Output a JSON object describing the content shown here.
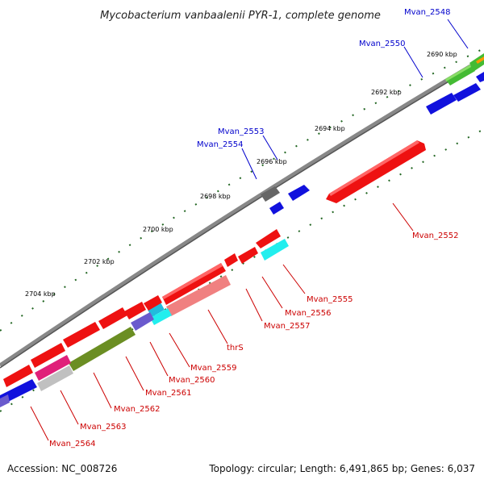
{
  "title": "Mycobacterium vanbaalenii PYR-1, complete genome",
  "footer": {
    "accession": "Accession: NC_008726",
    "stats": "Topology: circular; Length: 6,491,865 bp; Genes: 6,037"
  },
  "scale_labels": [
    "2690 kbp",
    "2692 kbp",
    "2694 kbp",
    "2696 kbp",
    "2698 kbp",
    "2700 kbp",
    "2702 kbp",
    "2704 kbp"
  ],
  "gene_labels": [
    {
      "text": "Mvan_2548",
      "strand": "plus",
      "color": "#0000cc"
    },
    {
      "text": "Mvan_2550",
      "strand": "plus",
      "color": "#0000cc"
    },
    {
      "text": "Mvan_2553",
      "strand": "plus",
      "color": "#0000cc"
    },
    {
      "text": "Mvan_2554",
      "strand": "plus",
      "color": "#0000cc"
    },
    {
      "text": "Mvan_2552",
      "strand": "minus",
      "color": "#cc0000"
    },
    {
      "text": "Mvan_2555",
      "strand": "minus",
      "color": "#cc0000"
    },
    {
      "text": "Mvan_2556",
      "strand": "minus",
      "color": "#cc0000"
    },
    {
      "text": "Mvan_2557",
      "strand": "minus",
      "color": "#cc0000"
    },
    {
      "text": "thrS",
      "strand": "minus",
      "color": "#cc0000"
    },
    {
      "text": "Mvan_2559",
      "strand": "minus",
      "color": "#cc0000"
    },
    {
      "text": "Mvan_2560",
      "strand": "minus",
      "color": "#cc0000"
    },
    {
      "text": "Mvan_2561",
      "strand": "minus",
      "color": "#cc0000"
    },
    {
      "text": "Mvan_2562",
      "strand": "minus",
      "color": "#cc0000"
    },
    {
      "text": "Mvan_2563",
      "strand": "minus",
      "color": "#cc0000"
    },
    {
      "text": "Mvan_2564",
      "strand": "minus",
      "color": "#cc0000"
    }
  ],
  "colors": {
    "backbone": "#888888",
    "red": "#ee1111",
    "blue": "#1111dd",
    "green": "#44bb33",
    "orange": "#ff9900",
    "gray": "#666666",
    "cyan": "#22eeee",
    "salmon": "#f08080",
    "olive": "#6b8e23",
    "purple": "#6a5acd",
    "magenta": "#e0207a",
    "silver": "#c0c0c0",
    "tick": "#226622"
  }
}
